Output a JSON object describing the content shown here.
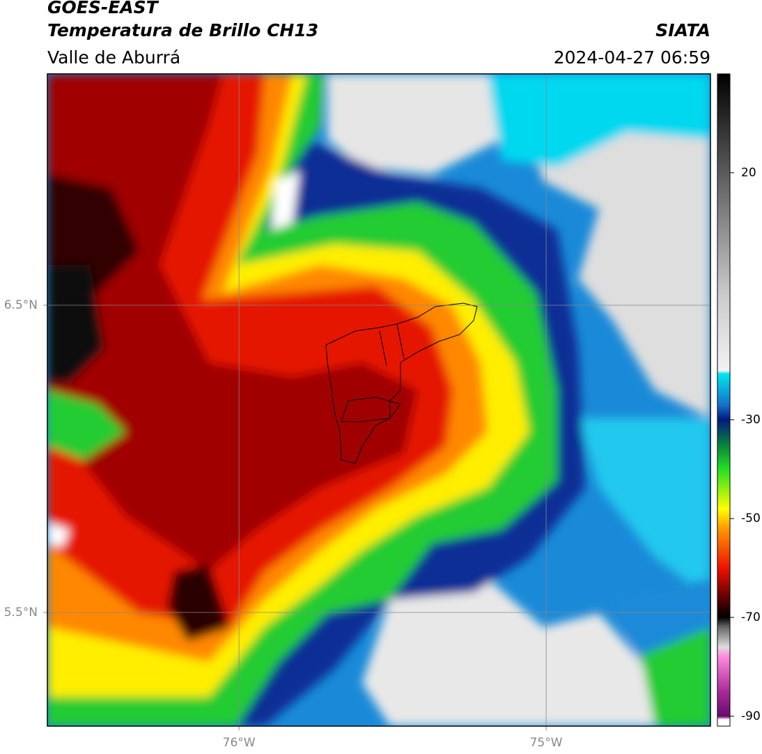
{
  "header": {
    "title": "GOES-EAST",
    "subtitle": "Temperatura de Brillo CH13",
    "region": "Valle de Aburrá",
    "source": "SIATA",
    "datetime": "2024-04-27 06:59"
  },
  "map": {
    "xlim": [
      -76.624,
      -74.465
    ],
    "ylim": [
      5.13,
      7.253
    ],
    "xticks": [
      {
        "value": -76,
        "label": "76°W"
      },
      {
        "value": -75,
        "label": "75°W"
      }
    ],
    "yticks": [
      {
        "value": 6.5,
        "label": "6.5°N"
      },
      {
        "value": 5.5,
        "label": "5.5°N"
      }
    ],
    "grid": true
  },
  "colorbar": {
    "lim": [
      -92,
      40
    ],
    "ticks": [
      20,
      -30,
      -50,
      -70,
      -90
    ]
  }
}
